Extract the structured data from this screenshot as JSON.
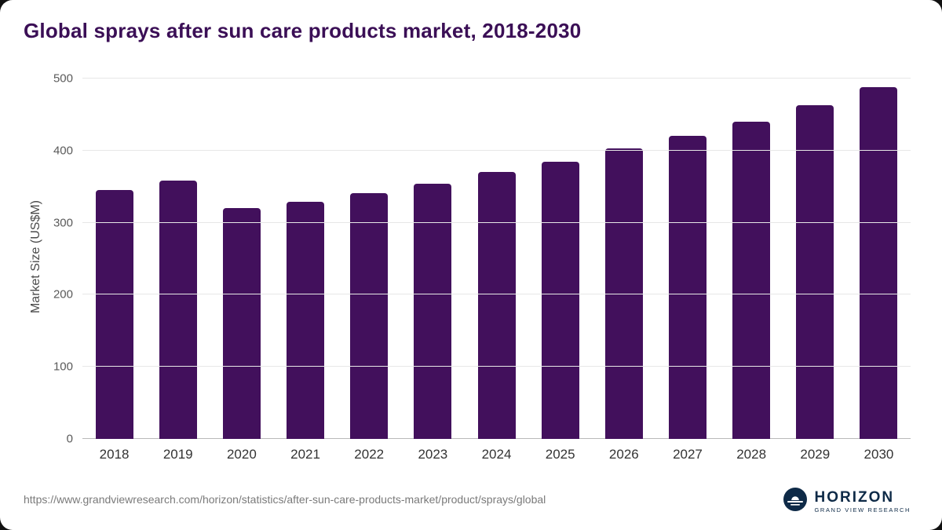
{
  "title": "Global sprays after sun care products market, 2018-2030",
  "footer": {
    "source_url": "https://www.grandviewresearch.com/horizon/statistics/after-sun-care-products-market/product/sprays/global"
  },
  "logo": {
    "name": "HORIZON",
    "subtitle": "GRAND VIEW RESEARCH"
  },
  "colors": {
    "bar": "#42105c",
    "title": "#3b0f56",
    "grid": "#e7e7e7",
    "axis_line": "#b9b9b9",
    "logo_navy": "#0e2a47"
  },
  "chart_data": {
    "type": "bar",
    "title": "Global sprays after sun care products market, 2018-2030",
    "categories": [
      "2018",
      "2019",
      "2020",
      "2021",
      "2022",
      "2023",
      "2024",
      "2025",
      "2026",
      "2027",
      "2028",
      "2029",
      "2030"
    ],
    "values": [
      345,
      358,
      320,
      329,
      341,
      354,
      370,
      385,
      403,
      420,
      440,
      463,
      488
    ],
    "xlabel": "",
    "ylabel": "Market Size (US$M)",
    "ylim": [
      0,
      500
    ],
    "yticks": [
      0,
      100,
      200,
      300,
      400,
      500
    ],
    "grid": "horizontal",
    "legend": "none"
  }
}
